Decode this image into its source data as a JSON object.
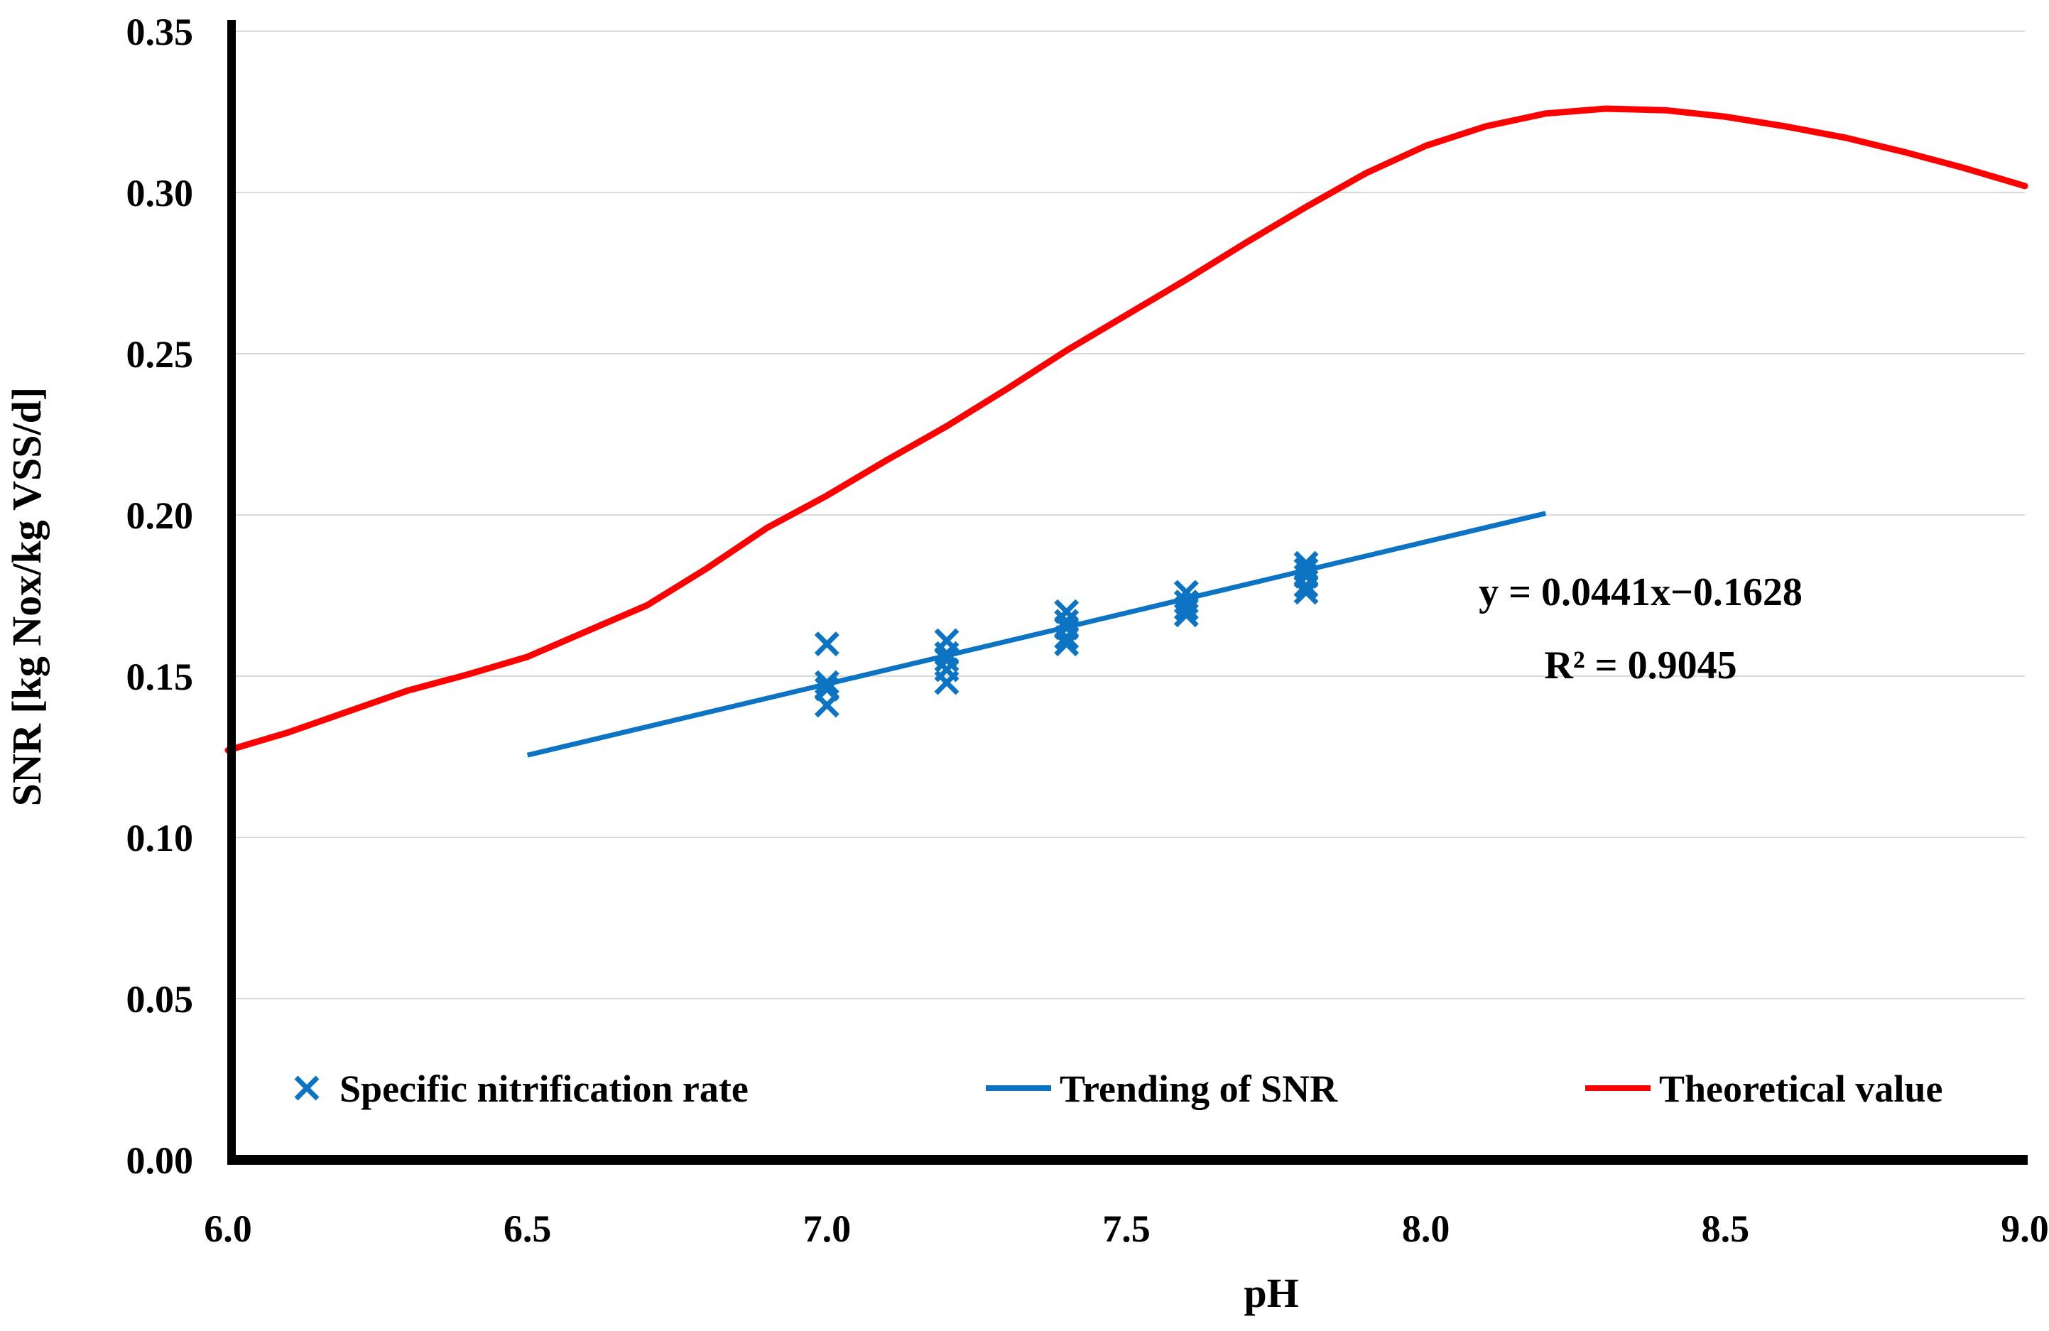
{
  "chart_data": {
    "type": "scatter",
    "title": "",
    "xlabel": "pH",
    "ylabel": "SNR [kg Nox/kg VSS/d]",
    "xlim": [
      6.0,
      9.0
    ],
    "ylim": [
      0.0,
      0.35
    ],
    "x_ticks": [
      "6.0",
      "6.5",
      "7.0",
      "7.5",
      "8.0",
      "8.5",
      "9.0"
    ],
    "y_ticks": [
      "0.00",
      "0.05",
      "0.10",
      "0.15",
      "0.20",
      "0.25",
      "0.30",
      "0.35"
    ],
    "grid": "horizontal-major-only",
    "grid_color": "#d9d9d9",
    "axis_color": "#000000",
    "legend_position": "bottom-inside-row",
    "series": [
      {
        "name": "Specific nitrification rate",
        "type": "scatter",
        "marker": "x",
        "color": "#0d74c4",
        "points": [
          [
            7.0,
            0.16
          ],
          [
            7.0,
            0.148
          ],
          [
            7.0,
            0.146
          ],
          [
            7.0,
            0.141
          ],
          [
            7.2,
            0.161
          ],
          [
            7.2,
            0.157
          ],
          [
            7.2,
            0.155
          ],
          [
            7.2,
            0.152
          ],
          [
            7.2,
            0.148
          ],
          [
            7.4,
            0.17
          ],
          [
            7.4,
            0.167
          ],
          [
            7.4,
            0.165
          ],
          [
            7.4,
            0.162
          ],
          [
            7.4,
            0.16
          ],
          [
            7.6,
            0.176
          ],
          [
            7.6,
            0.173
          ],
          [
            7.6,
            0.171
          ],
          [
            7.6,
            0.169
          ],
          [
            7.8,
            0.185
          ],
          [
            7.8,
            0.183
          ],
          [
            7.8,
            0.181
          ],
          [
            7.8,
            0.178
          ],
          [
            7.8,
            0.176
          ]
        ]
      },
      {
        "name": "Trending of SNR",
        "type": "line",
        "color": "#0d74c4",
        "points": [
          [
            6.5,
            0.1255
          ],
          [
            8.2,
            0.2005
          ]
        ]
      },
      {
        "name": "Theoretical value",
        "type": "line",
        "color": "#ff0000",
        "points": [
          [
            6.0,
            0.127
          ],
          [
            6.1,
            0.1325
          ],
          [
            6.2,
            0.139
          ],
          [
            6.3,
            0.1455
          ],
          [
            6.4,
            0.1505
          ],
          [
            6.5,
            0.156
          ],
          [
            6.6,
            0.164
          ],
          [
            6.7,
            0.172
          ],
          [
            6.8,
            0.1835
          ],
          [
            6.9,
            0.196
          ],
          [
            7.0,
            0.206
          ],
          [
            7.1,
            0.217
          ],
          [
            7.2,
            0.2275
          ],
          [
            7.3,
            0.239
          ],
          [
            7.4,
            0.251
          ],
          [
            7.5,
            0.262
          ],
          [
            7.6,
            0.273
          ],
          [
            7.7,
            0.2845
          ],
          [
            7.8,
            0.2955
          ],
          [
            7.9,
            0.306
          ],
          [
            8.0,
            0.3145
          ],
          [
            8.1,
            0.3205
          ],
          [
            8.2,
            0.3245
          ],
          [
            8.3,
            0.326
          ],
          [
            8.4,
            0.3255
          ],
          [
            8.5,
            0.3235
          ],
          [
            8.6,
            0.3205
          ],
          [
            8.7,
            0.317
          ],
          [
            8.8,
            0.3125
          ],
          [
            8.9,
            0.3075
          ],
          [
            9.0,
            0.302
          ]
        ]
      }
    ],
    "trend": {
      "equation": "y = 0.0441x−0.1628",
      "r_squared": "R² = 0.9045",
      "slope": 0.0441,
      "intercept": -0.1628
    },
    "annotation": {
      "line1": "y = 0.0441x−0.1628",
      "line2": "R² = 0.9045"
    }
  }
}
